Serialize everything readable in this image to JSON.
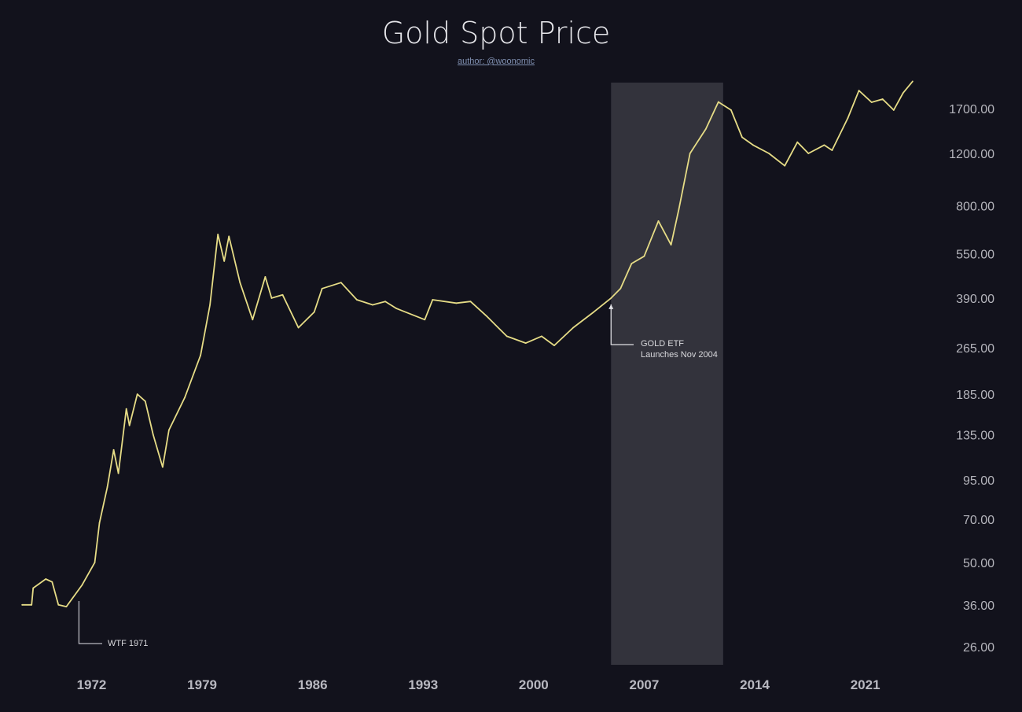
{
  "chart_data": {
    "type": "line",
    "title": "Gold Spot Price",
    "subtitle": "author: @woonomic",
    "xlabel": "",
    "ylabel": "",
    "y_scale": "log",
    "xlim": [
      1966.2,
      2025.5
    ],
    "ylim": [
      22.6,
      2080
    ],
    "grid": false,
    "line_color": "#e6dc86",
    "background_color": "#12121c",
    "x_ticks": [
      1972,
      1979,
      1986,
      1993,
      2000,
      2007,
      2014,
      2021
    ],
    "y_ticks": [
      26,
      36,
      50,
      70,
      95,
      135,
      185,
      265,
      390,
      550,
      800,
      1200,
      1700
    ],
    "y_tick_labels": [
      "26.00",
      "36.00",
      "50.00",
      "70.00",
      "95.00",
      "135.00",
      "185.00",
      "265.00",
      "390.00",
      "550.00",
      "800.00",
      "1200.00",
      "1700.00"
    ],
    "shaded_region": {
      "x": [
        2004.9,
        2012.0
      ],
      "color": "rgba(255,255,255,0.14)"
    },
    "annotations": [
      {
        "x": 1971.1,
        "y": 38,
        "lines": [
          "WTF 1971"
        ]
      },
      {
        "x": 2004.9,
        "y": 390,
        "lines": [
          "GOLD ETF",
          "Launches Nov 2004"
        ]
      }
    ],
    "series": [
      {
        "x": [
          1967.6,
          1968.2,
          1968.3,
          1969.1,
          1969.5,
          1969.9,
          1970.4,
          1971.4,
          1972.2,
          1972.5,
          1973.0,
          1973.4,
          1973.7,
          1974.2,
          1974.4,
          1974.9,
          1975.4,
          1975.9,
          1976.5,
          1976.9,
          1977.9,
          1978.9,
          1979.5,
          1980.0,
          1980.4,
          1980.7,
          1981.4,
          1982.2,
          1983.0,
          1983.4,
          1984.1,
          1985.1,
          1986.1,
          1986.6,
          1987.8,
          1988.8,
          1989.8,
          1990.6,
          1991.3,
          1993.1,
          1993.6,
          1995.1,
          1996.0,
          1997.0,
          1998.3,
          1999.5,
          2000.5,
          2001.3,
          2002.5,
          2003.8,
          2004.9,
          2005.5,
          2006.2,
          2007.0,
          2007.9,
          2008.7,
          2009.2,
          2009.9,
          2010.9,
          2011.7,
          2012.5,
          2013.2,
          2013.9,
          2014.9,
          2015.9,
          2016.7,
          2017.4,
          2018.4,
          2018.9,
          2019.9,
          2020.6,
          2021.4,
          2022.1,
          2022.8,
          2023.4,
          2024.0
        ],
        "y": [
          36,
          36,
          41,
          44,
          43,
          36,
          35.5,
          42,
          50,
          68,
          90,
          120,
          100,
          165,
          145,
          185,
          175,
          135,
          105,
          140,
          180,
          250,
          370,
          640,
          520,
          630,
          440,
          330,
          460,
          390,
          400,
          310,
          350,
          420,
          440,
          385,
          370,
          380,
          360,
          330,
          385,
          375,
          380,
          340,
          290,
          275,
          290,
          270,
          310,
          350,
          390,
          420,
          510,
          540,
          710,
          590,
          780,
          1200,
          1450,
          1790,
          1680,
          1360,
          1280,
          1200,
          1090,
          1310,
          1200,
          1280,
          1230,
          1580,
          1955,
          1785,
          1830,
          1680,
          1920,
          2100
        ]
      }
    ]
  }
}
